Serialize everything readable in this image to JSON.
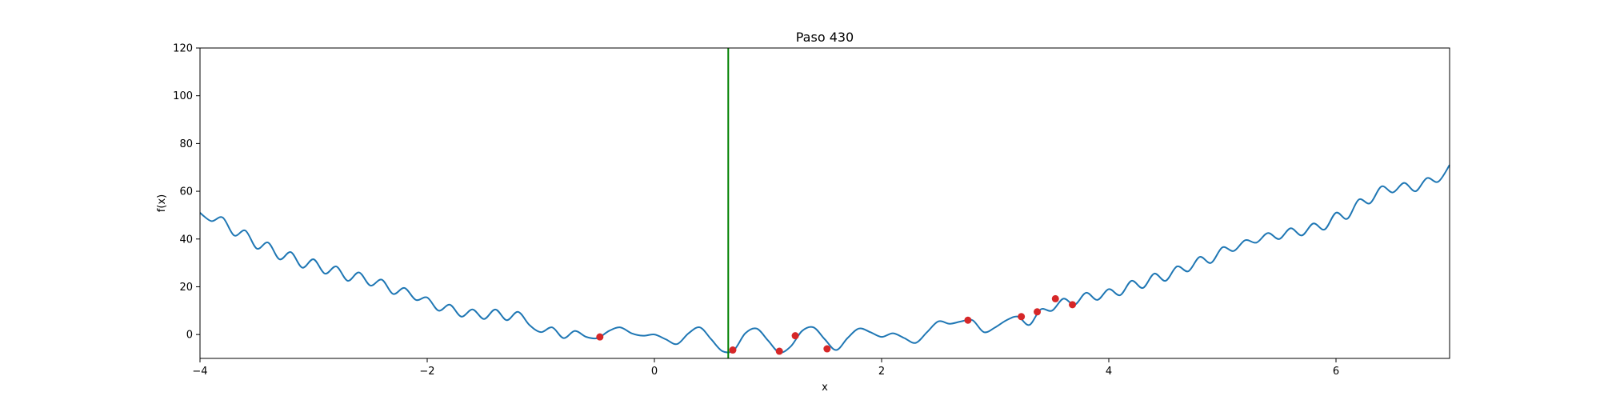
{
  "chart_data": {
    "type": "line",
    "title": "Paso 430",
    "xlabel": "x",
    "ylabel": "f(x)",
    "xlim": [
      -4,
      7
    ],
    "ylim": [
      -10,
      120
    ],
    "xticks": [
      -4,
      -2,
      0,
      2,
      4,
      6
    ],
    "yticks": [
      0,
      20,
      40,
      60,
      80,
      100,
      120
    ],
    "grid": false,
    "series": [
      {
        "kind": "curve",
        "color": "#1f77b4",
        "x": [
          -4.0,
          -3.9,
          -3.8,
          -3.7,
          -3.6,
          -3.5,
          -3.4,
          -3.3,
          -3.2,
          -3.1,
          -3.0,
          -2.9,
          -2.8,
          -2.7,
          -2.6,
          -2.5,
          -2.4,
          -2.3,
          -2.2,
          -2.1,
          -2.0,
          -1.9,
          -1.8,
          -1.7,
          -1.6,
          -1.5,
          -1.4,
          -1.3,
          -1.2,
          -1.1,
          -1.0,
          -0.9,
          -0.8,
          -0.7,
          -0.6,
          -0.5,
          -0.4,
          -0.3,
          -0.2,
          -0.1,
          0.0,
          0.1,
          0.2,
          0.3,
          0.4,
          0.5,
          0.6,
          0.7,
          0.8,
          0.9,
          1.0,
          1.1,
          1.2,
          1.3,
          1.4,
          1.5,
          1.6,
          1.7,
          1.8,
          1.9,
          2.0,
          2.1,
          2.2,
          2.3,
          2.4,
          2.5,
          2.6,
          2.7,
          2.8,
          2.9,
          3.0,
          3.1,
          3.2,
          3.3,
          3.4,
          3.5,
          3.6,
          3.7,
          3.8,
          3.9,
          4.0,
          4.1,
          4.2,
          4.3,
          4.4,
          4.5,
          4.6,
          4.7,
          4.8,
          4.9,
          5.0,
          5.1,
          5.2,
          5.3,
          5.4,
          5.5,
          5.6,
          5.7,
          5.8,
          5.9,
          6.0,
          6.1,
          6.2,
          6.3,
          6.4,
          6.5,
          6.6,
          6.7,
          6.8,
          6.9,
          7.0
        ],
        "y": [
          51.0,
          47.5,
          49.0,
          41.5,
          43.5,
          36.0,
          38.5,
          31.5,
          34.5,
          28.0,
          31.5,
          25.5,
          28.5,
          22.5,
          26.0,
          20.5,
          23.0,
          17.0,
          19.5,
          14.5,
          15.5,
          10.0,
          12.5,
          7.5,
          10.5,
          6.5,
          10.5,
          6.0,
          9.5,
          4.0,
          1.0,
          3.0,
          -1.5,
          1.5,
          -1.0,
          -1.5,
          1.5,
          3.0,
          0.5,
          -0.5,
          0.0,
          -2.0,
          -4.0,
          0.5,
          3.0,
          -2.0,
          -7.0,
          -6.5,
          0.5,
          2.5,
          -2.5,
          -7.5,
          -5.0,
          1.5,
          3.0,
          -2.0,
          -6.5,
          -1.5,
          2.5,
          1.0,
          -1.0,
          0.5,
          -1.5,
          -3.5,
          1.0,
          5.5,
          4.5,
          5.5,
          6.0,
          1.0,
          3.0,
          6.0,
          7.5,
          4.0,
          10.5,
          10.0,
          15.0,
          12.5,
          17.5,
          14.5,
          19.0,
          16.5,
          22.5,
          19.5,
          25.5,
          22.5,
          28.5,
          26.5,
          32.5,
          30.0,
          36.5,
          35.0,
          39.5,
          38.5,
          42.5,
          40.0,
          44.5,
          41.5,
          46.5,
          44.0,
          51.0,
          48.5,
          56.5,
          55.0,
          62.0,
          59.5,
          63.5,
          60.0,
          65.5,
          64.0,
          71.0
        ]
      },
      {
        "kind": "points",
        "color": "#d62728",
        "x": [
          -0.48,
          0.69,
          1.1,
          1.24,
          1.52,
          2.76,
          3.23,
          3.37,
          3.53,
          3.68
        ],
        "y": [
          -1.0,
          -6.5,
          -7.0,
          -0.5,
          -6.0,
          6.0,
          7.5,
          9.5,
          15.0,
          12.5
        ]
      },
      {
        "kind": "vline",
        "color": "#008000",
        "x": [
          0.65
        ]
      }
    ]
  }
}
